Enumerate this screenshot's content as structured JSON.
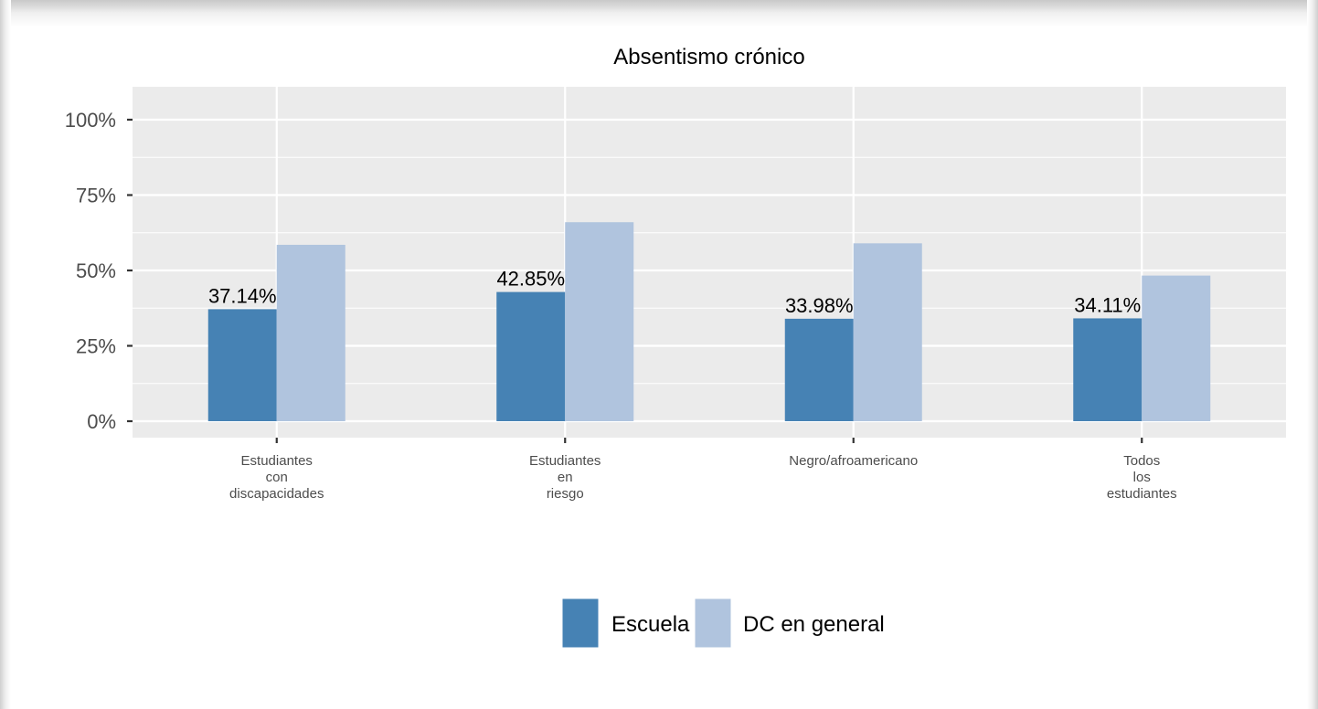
{
  "chart_data": {
    "type": "bar",
    "title": "Absentismo crónico",
    "xlabel": "",
    "ylabel": "",
    "ylim": [
      0,
      100
    ],
    "yticks": [
      "0%",
      "25%",
      "50%",
      "75%",
      "100%"
    ],
    "ytick_values": [
      0,
      25,
      50,
      75,
      100
    ],
    "categories": [
      [
        "Estudiantes",
        "con",
        "discapacidades"
      ],
      [
        "Estudiantes",
        "en",
        "riesgo"
      ],
      [
        "Negro/afroamericano"
      ],
      [
        "Todos",
        "los",
        "estudiantes"
      ]
    ],
    "series": [
      {
        "name": "Escuela",
        "color": "#4682b4",
        "values": [
          37.14,
          42.85,
          33.98,
          34.11
        ],
        "labels": [
          "37.14%",
          "42.85%",
          "33.98%",
          "34.11%"
        ]
      },
      {
        "name": "DC en general",
        "color": "#b0c4de",
        "values": [
          58.5,
          66,
          59,
          48.3
        ]
      }
    ],
    "legend_position": "bottom",
    "grid": true,
    "panel_background": "#ebebeb"
  }
}
